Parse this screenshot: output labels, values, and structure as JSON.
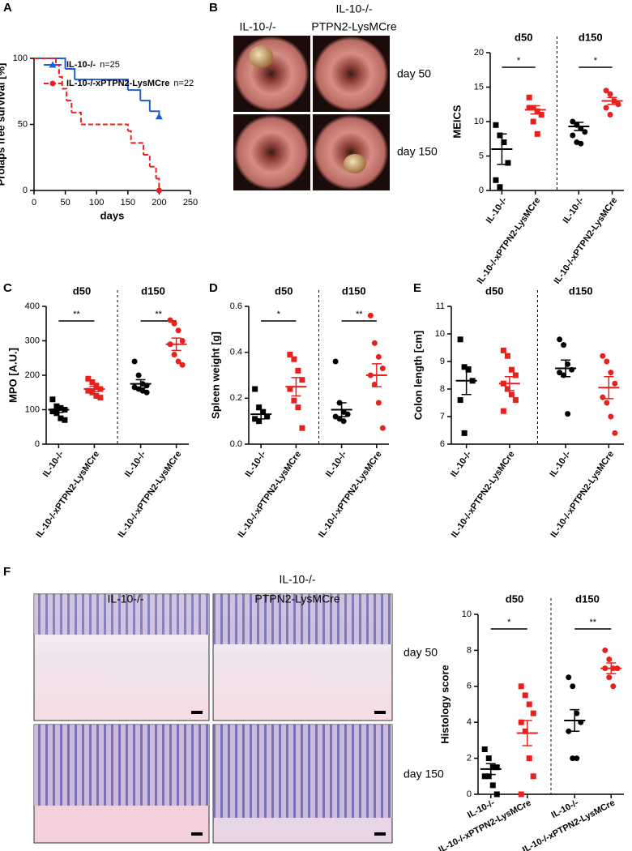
{
  "figure": {
    "panels": [
      "A",
      "B",
      "C",
      "D",
      "E",
      "F"
    ],
    "endoscopy": {
      "columns": [
        "IL-10-/-",
        "IL-10-/-",
        "PTPN2-LysMCre"
      ],
      "rows": [
        "day 50",
        "day 150"
      ]
    },
    "histology": {
      "columns": [
        "IL-10-/-",
        "IL-10-/-",
        "PTPN2-LysMCre"
      ],
      "rows": [
        "day 50",
        "day 150"
      ]
    }
  },
  "chart_data": [
    {
      "type": "step",
      "xlabel": "days",
      "ylabel": "Prolaps free survival [%]",
      "xlim": [
        0,
        250
      ],
      "xticks": [
        0,
        50,
        100,
        150,
        200,
        250
      ],
      "ylim": [
        0,
        100
      ],
      "yticks": [
        0,
        50,
        100
      ],
      "series": [
        {
          "name": "IL-10-/-",
          "n": "n=25",
          "color": "#1f5fd6",
          "marker": "triangle",
          "dash": false,
          "x": [
            0,
            50,
            65,
            150,
            170,
            185,
            200
          ],
          "values": [
            100,
            92,
            84,
            76,
            68,
            60,
            56
          ]
        },
        {
          "name": "IL-10-/-xPTPN2-LysMCre",
          "n": "n=22",
          "color": "#e8201e",
          "marker": "circle",
          "dash": true,
          "x": [
            0,
            35,
            40,
            45,
            52,
            60,
            75,
            150,
            155,
            175,
            185,
            195,
            200
          ],
          "values": [
            100,
            95,
            86,
            77,
            68,
            59,
            50,
            45,
            36,
            27,
            18,
            9,
            0
          ]
        }
      ]
    },
    {
      "type": "dotplot",
      "ylabel": "MEICS",
      "ylim": [
        0,
        20
      ],
      "yticks": [
        0,
        5,
        10,
        15,
        20
      ],
      "groups": [
        "d50",
        "d150"
      ],
      "significance": [
        "*",
        "*"
      ],
      "categories": [
        "IL-10-/-",
        "IL-10-/-xPTPN2-LysMCre",
        "IL-10-/-",
        "IL-10-/-xPTPN2-LysMCre"
      ],
      "colors": [
        "#000000",
        "#e8201e",
        "#000000",
        "#e8201e"
      ],
      "markers": [
        "square",
        "square",
        "circle",
        "circle"
      ],
      "points": [
        [
          9.5,
          8,
          7,
          4,
          1.5,
          0.5
        ],
        [
          13.5,
          12,
          11.5,
          11,
          12,
          10,
          8.2
        ],
        [
          10,
          9.5,
          9,
          8.5,
          8,
          7,
          6.8
        ],
        [
          14.5,
          14,
          13,
          12.5,
          12,
          11
        ]
      ],
      "means": [
        6,
        11.7,
        9.3,
        13
      ],
      "sems": [
        2.2,
        0.6,
        0.6,
        0.5
      ]
    },
    {
      "type": "dotplot",
      "ylabel": "MPO [A.U.]",
      "ylim": [
        0,
        400
      ],
      "yticks": [
        0,
        100,
        200,
        300,
        400
      ],
      "groups": [
        "d50",
        "d150"
      ],
      "significance": [
        "**",
        "**"
      ],
      "categories": [
        "IL-10-/-",
        "IL-10-/-xPTPN2-LysMCre",
        "IL-10-/-",
        "IL-10-/-xPTPN2-LysMCre"
      ],
      "colors": [
        "#000000",
        "#e8201e",
        "#000000",
        "#e8201e"
      ],
      "markers": [
        "square",
        "square",
        "circle",
        "circle"
      ],
      "points": [
        [
          130,
          110,
          105,
          100,
          95,
          90,
          75,
          70
        ],
        [
          190,
          180,
          170,
          160,
          155,
          150,
          140,
          135
        ],
        [
          240,
          200,
          175,
          170,
          165,
          160,
          155,
          150
        ],
        [
          360,
          350,
          330,
          300,
          290,
          260,
          240,
          230
        ]
      ],
      "means": [
        100,
        160,
        175,
        290
      ],
      "sems": [
        8,
        8,
        12,
        18
      ]
    },
    {
      "type": "dotplot",
      "ylabel": "Spleen weight [g]",
      "ylim": [
        0,
        0.6
      ],
      "yticks": [
        {
          "value": 0,
          "label": "0.0"
        },
        0.2,
        0.4,
        0.6
      ],
      "groups": [
        "d50",
        "d150"
      ],
      "significance": [
        "*",
        "**"
      ],
      "categories": [
        "IL-10-/-",
        "IL-10-/-xPTPN2-LysMCre",
        "IL-10-/-",
        "IL-10-/-xPTPN2-LysMCre"
      ],
      "colors": [
        "#000000",
        "#e8201e",
        "#000000",
        "#e8201e"
      ],
      "markers": [
        "square",
        "square",
        "circle",
        "circle"
      ],
      "points": [
        [
          0.24,
          0.16,
          0.14,
          0.12,
          0.11,
          0.1
        ],
        [
          0.39,
          0.37,
          0.32,
          0.28,
          0.24,
          0.19,
          0.16,
          0.07
        ],
        [
          0.36,
          0.18,
          0.14,
          0.13,
          0.12,
          0.11,
          0.1
        ],
        [
          0.56,
          0.44,
          0.38,
          0.33,
          0.3,
          0.26,
          0.18,
          0.07
        ]
      ],
      "means": [
        0.13,
        0.25,
        0.15,
        0.3
      ],
      "sems": [
        0.02,
        0.04,
        0.03,
        0.05
      ]
    },
    {
      "type": "dotplot",
      "ylabel": "Colon length [cm]",
      "ylim": [
        6,
        11
      ],
      "yticks": [
        6,
        7,
        8,
        9,
        10,
        11
      ],
      "groups": [
        "d50",
        "d150"
      ],
      "categories": [
        "IL-10-/-",
        "IL-10-/-xPTPN2-LysMCre",
        "IL-10-/-",
        "IL-10-/-xPTPN2-LysMCre"
      ],
      "colors": [
        "#000000",
        "#e8201e",
        "#000000",
        "#e8201e"
      ],
      "markers": [
        "square",
        "square",
        "circle",
        "circle"
      ],
      "points": [
        [
          9.8,
          8.8,
          8.7,
          8.3,
          7.6,
          6.4
        ],
        [
          9.4,
          9.2,
          8.7,
          8.5,
          8.2,
          8,
          7.8,
          7.6,
          7.2
        ],
        [
          9.8,
          9.6,
          8.9,
          8.7,
          8.6,
          8.5,
          7.1
        ],
        [
          9.2,
          9,
          8.6,
          8.2,
          7.7,
          7.5,
          7,
          6.4
        ]
      ],
      "means": [
        8.3,
        8.2,
        8.75,
        8.05
      ],
      "sems": [
        0.5,
        0.25,
        0.3,
        0.4
      ]
    },
    {
      "type": "dotplot",
      "ylabel": "Histology score",
      "ylim": [
        0,
        10
      ],
      "yticks": [
        0,
        2,
        4,
        6,
        8,
        10
      ],
      "groups": [
        "d50",
        "d150"
      ],
      "significance": [
        "*",
        "**"
      ],
      "categories": [
        "IL-10-/-",
        "IL-10-/-xPTPN2-LysMCre",
        "IL-10-/-",
        "IL-10-/-xPTPN2-LysMCre"
      ],
      "colors": [
        "#000000",
        "#e8201e",
        "#000000",
        "#e8201e"
      ],
      "markers": [
        "square",
        "square",
        "circle",
        "circle"
      ],
      "points": [
        [
          2.5,
          2,
          1.5,
          1.5,
          1,
          1,
          0.5,
          0
        ],
        [
          6,
          5.5,
          5,
          4.5,
          4,
          3.5,
          2,
          1,
          0
        ],
        [
          6.5,
          6,
          4.5,
          4,
          3.5,
          2,
          2
        ],
        [
          8,
          7.5,
          7,
          7,
          7,
          6.5,
          6
        ]
      ],
      "means": [
        1.4,
        3.4,
        4.1,
        7
      ],
      "sems": [
        0.3,
        0.7,
        0.6,
        0.3
      ]
    }
  ]
}
